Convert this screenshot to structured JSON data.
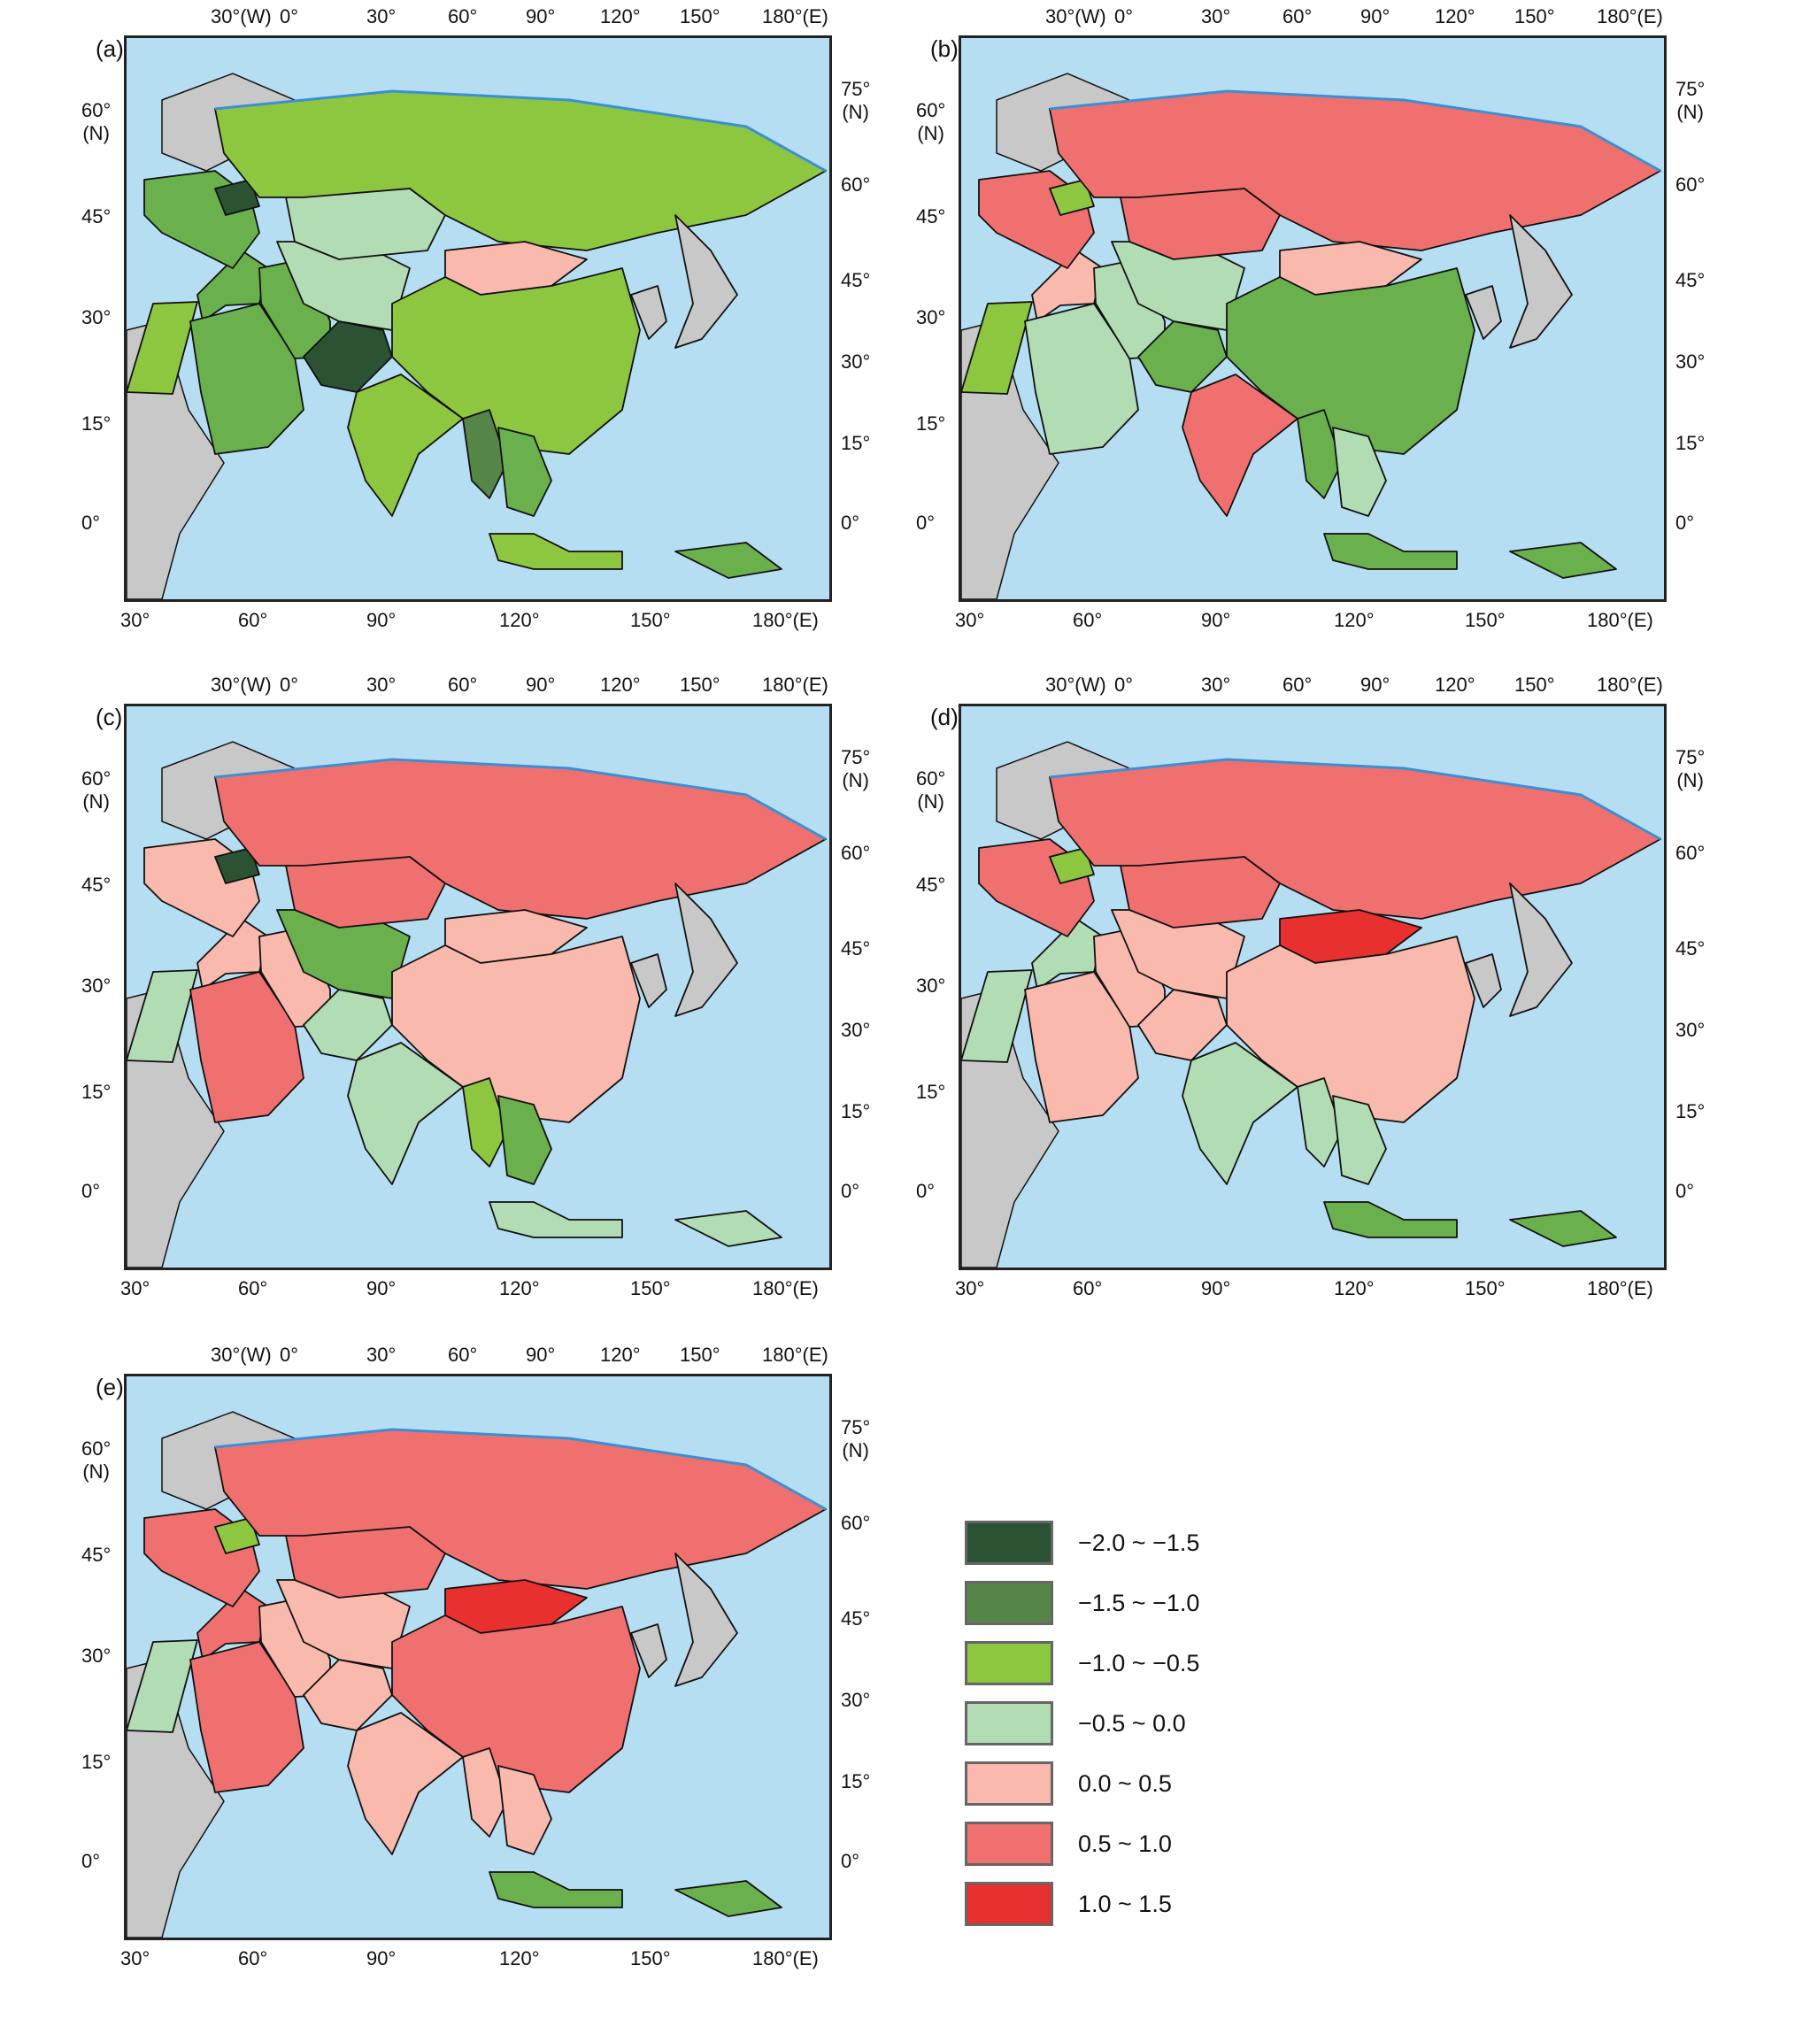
{
  "top_axis_ticks": [
    "30°(W)",
    "0°",
    "30°",
    "60°",
    "90°",
    "120°",
    "150°",
    "180°(E)"
  ],
  "bottom_axis_ticks": [
    "30°",
    "60°",
    "90°",
    "120°",
    "150°",
    "180°(E)"
  ],
  "left_axis_ticks": [
    "60°\n(N)",
    "45°",
    "30°",
    "15°",
    "0°"
  ],
  "right_axis_ticks": [
    "75°\n(N)",
    "60°",
    "45°",
    "30°",
    "15°",
    "0°"
  ],
  "panels": [
    {
      "label": "(a)",
      "regions": {
        "russia": "#8dc63f",
        "europe": "#6ab04c",
        "belarus": "#2b5233",
        "kazakhstan": "#b2dcb3",
        "mongolia": "#f9b9ad",
        "china": "#8dc63f",
        "india": "#8dc63f",
        "middle_east": "#6ab04c",
        "arabia": "#6ab04c",
        "iran": "#6ab04c",
        "pakistan": "#2b5233",
        "central_asia": "#b2dcb3",
        "myanmar": "#568548",
        "se_asia": "#6ab04c",
        "indonesia": "#8dc63f",
        "new_guinea": "#6ab04c",
        "japan": "#c8c8c8",
        "korea": "#c8c8c8",
        "egypt": "#8dc63f"
      }
    },
    {
      "label": "(b)",
      "regions": {
        "russia": "#f07070",
        "europe": "#f07070",
        "belarus": "#8dc63f",
        "kazakhstan": "#f07070",
        "mongolia": "#f9b9ad",
        "china": "#6ab04c",
        "india": "#f07070",
        "middle_east": "#f9b9ad",
        "arabia": "#b2dcb3",
        "iran": "#b2dcb3",
        "pakistan": "#6ab04c",
        "central_asia": "#b2dcb3",
        "myanmar": "#6ab04c",
        "se_asia": "#b2dcb3",
        "indonesia": "#6ab04c",
        "new_guinea": "#6ab04c",
        "japan": "#c8c8c8",
        "korea": "#c8c8c8",
        "egypt": "#8dc63f"
      }
    },
    {
      "label": "(c)",
      "regions": {
        "russia": "#f07070",
        "europe": "#f9b9ad",
        "belarus": "#2b5233",
        "kazakhstan": "#f07070",
        "mongolia": "#f9b9ad",
        "china": "#f9b9ad",
        "india": "#b2dcb3",
        "middle_east": "#f9b9ad",
        "arabia": "#f07070",
        "iran": "#f9b9ad",
        "pakistan": "#b2dcb3",
        "central_asia": "#6ab04c",
        "myanmar": "#8dc63f",
        "se_asia": "#6ab04c",
        "indonesia": "#b2dcb3",
        "new_guinea": "#b2dcb3",
        "japan": "#c8c8c8",
        "korea": "#c8c8c8",
        "egypt": "#b2dcb3"
      }
    },
    {
      "label": "(d)",
      "regions": {
        "russia": "#f07070",
        "europe": "#f07070",
        "belarus": "#8dc63f",
        "kazakhstan": "#f07070",
        "mongolia": "#e8302f",
        "china": "#f9b9ad",
        "india": "#b2dcb3",
        "middle_east": "#b2dcb3",
        "arabia": "#f9b9ad",
        "iran": "#f9b9ad",
        "pakistan": "#f9b9ad",
        "central_asia": "#f9b9ad",
        "myanmar": "#b2dcb3",
        "se_asia": "#b2dcb3",
        "indonesia": "#6ab04c",
        "new_guinea": "#6ab04c",
        "japan": "#c8c8c8",
        "korea": "#c8c8c8",
        "egypt": "#b2dcb3"
      }
    },
    {
      "label": "(e)",
      "regions": {
        "russia": "#f07070",
        "europe": "#f07070",
        "belarus": "#8dc63f",
        "kazakhstan": "#f07070",
        "mongolia": "#e8302f",
        "china": "#f07070",
        "india": "#f9b9ad",
        "middle_east": "#f07070",
        "arabia": "#f07070",
        "iran": "#f9b9ad",
        "pakistan": "#f9b9ad",
        "central_asia": "#f9b9ad",
        "myanmar": "#f9b9ad",
        "se_asia": "#f9b9ad",
        "indonesia": "#6ab04c",
        "new_guinea": "#6ab04c",
        "japan": "#c8c8c8",
        "korea": "#c8c8c8",
        "egypt": "#b2dcb3"
      }
    }
  ],
  "legend": [
    {
      "label": "−2.0 ~ −1.5",
      "color": "#2b5233"
    },
    {
      "label": "−1.5 ~ −1.0",
      "color": "#568548"
    },
    {
      "label": "−1.0 ~ −0.5",
      "color": "#8dc63f"
    },
    {
      "label": "−0.5 ~ 0.0",
      "color": "#b2dcb3"
    },
    {
      "label": "0.0 ~ 0.5",
      "color": "#f9b9ad"
    },
    {
      "label": "0.5 ~ 1.0",
      "color": "#f07070"
    },
    {
      "label": "1.0 ~ 1.5",
      "color": "#e8302f"
    }
  ],
  "colors": {
    "ocean": "#b6def2",
    "no_data_land": "#c8c8c8",
    "border": "#111111",
    "coast": "#3b8fd4"
  }
}
